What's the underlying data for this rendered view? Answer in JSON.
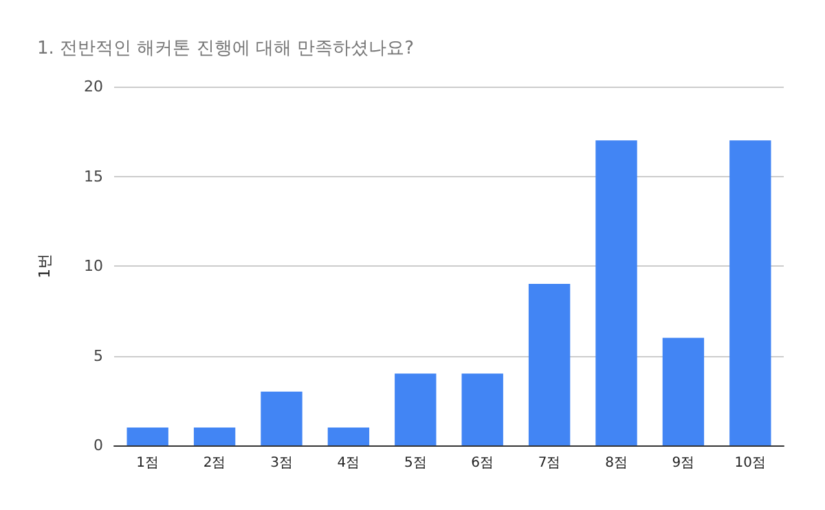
{
  "chart_data": {
    "type": "bar",
    "title": "1. 전반적인 해커톤 진행에 대해 만족하셨나요?",
    "ylabel": "1번",
    "categories": [
      "1점",
      "2점",
      "3점",
      "4점",
      "5점",
      "6점",
      "7점",
      "8점",
      "9점",
      "10점"
    ],
    "values": [
      1,
      1,
      3,
      1,
      4,
      4,
      9,
      17,
      6,
      17
    ],
    "color": "#4285f4",
    "ylim": [
      0,
      20
    ],
    "yticks": [
      0,
      5,
      10,
      15,
      20
    ],
    "grid": "y"
  }
}
